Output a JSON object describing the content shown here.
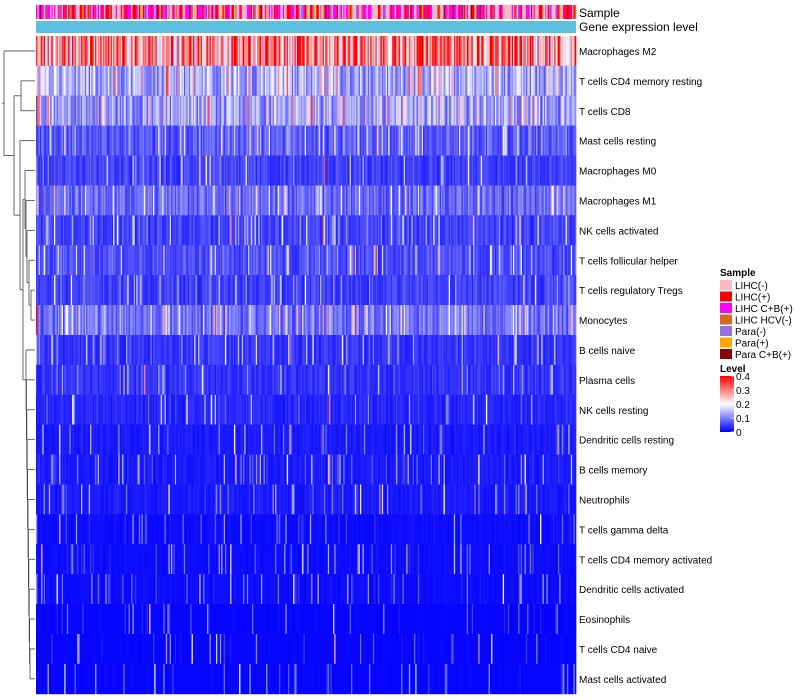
{
  "chart_data": {
    "type": "heatmap",
    "annotation_tracks": [
      "Sample",
      "Gene expression level"
    ],
    "rows": [
      {
        "name": "Macrophages M2",
        "mean": 0.28
      },
      {
        "name": "T cells CD4 memory resting",
        "mean": 0.13
      },
      {
        "name": "T cells CD8",
        "mean": 0.12
      },
      {
        "name": "Mast cells resting",
        "mean": 0.07
      },
      {
        "name": "Macrophages M0",
        "mean": 0.05
      },
      {
        "name": "Macrophages M1",
        "mean": 0.08
      },
      {
        "name": "NK cells activated",
        "mean": 0.05
      },
      {
        "name": "T cells follicular helper",
        "mean": 0.06
      },
      {
        "name": "T cells regulatory  Tregs",
        "mean": 0.05
      },
      {
        "name": "Monocytes",
        "mean": 0.09
      },
      {
        "name": "B cells naive",
        "mean": 0.04
      },
      {
        "name": "Plasma cells",
        "mean": 0.04
      },
      {
        "name": "NK cells resting",
        "mean": 0.03
      },
      {
        "name": "Dendritic cells resting",
        "mean": 0.02
      },
      {
        "name": "B cells memory",
        "mean": 0.02
      },
      {
        "name": "Neutrophils",
        "mean": 0.02
      },
      {
        "name": "T cells gamma delta",
        "mean": 0.01
      },
      {
        "name": "T cells CD4 memory activated",
        "mean": 0.01
      },
      {
        "name": "Dendritic cells activated",
        "mean": 0.01
      },
      {
        "name": "Eosinophils",
        "mean": 0.005
      },
      {
        "name": "T cells CD4 naive",
        "mean": 0.005
      },
      {
        "name": "Mast cells activated",
        "mean": 0.005
      }
    ],
    "n_columns": 420,
    "legend_sample": {
      "title": "Sample",
      "entries": [
        {
          "label": "LIHC(-)",
          "color": "#FFB6C1"
        },
        {
          "label": "LIHC(+)",
          "color": "#FF0000"
        },
        {
          "label": "LIHC C+B(+)",
          "color": "#FF00FF"
        },
        {
          "label": "LIHC HCV(-)",
          "color": "#D2691E"
        },
        {
          "label": "Para(-)",
          "color": "#9370DB"
        },
        {
          "label": "Para(+)",
          "color": "#FFA500"
        },
        {
          "label": "Para C+B(+)",
          "color": "#8B0000"
        }
      ]
    },
    "legend_level": {
      "title": "Level",
      "ticks": [
        "0.4",
        "0.3",
        "0.2",
        "0.1",
        "0"
      ],
      "range": [
        0,
        0.4
      ]
    },
    "expression_bar_color": "#5BC0E0",
    "colors": {
      "low": "#0000FF",
      "mid": "#FFFFFF",
      "high": "#FF0000"
    }
  }
}
